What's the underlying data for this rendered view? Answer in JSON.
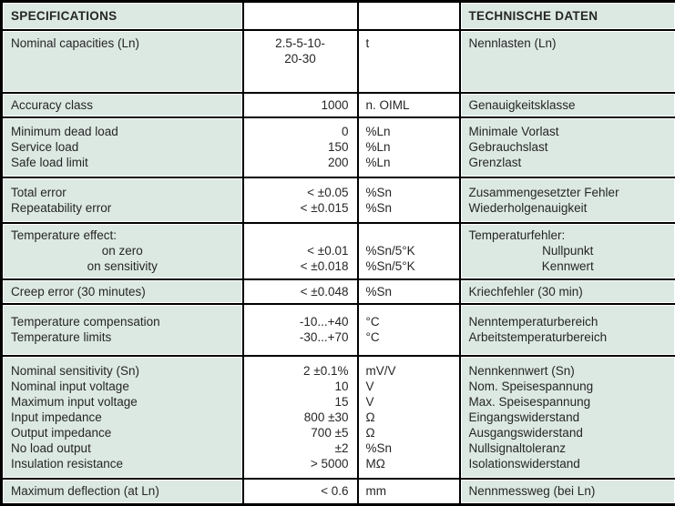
{
  "colors": {
    "cell_teal": "#dce9e3",
    "border_black": "#000000",
    "text_dark": "#262626",
    "cell_white": "#ffffff"
  },
  "header": {
    "left": "SPECIFICATIONS",
    "right": "TECHNISCHE DATEN"
  },
  "rows": [
    {
      "spec": [
        "Nominal capacities (Ln)"
      ],
      "value": [
        "2.5-5-10-",
        "20-30"
      ],
      "value_align": "center",
      "unit": [
        "t"
      ],
      "german": [
        "Nennlasten (Ln)"
      ],
      "valign": "top"
    },
    {
      "spec": [
        "Accuracy class"
      ],
      "value": [
        "1000"
      ],
      "unit": [
        "n. OIML"
      ],
      "german": [
        "Genauigkeitsklasse"
      ]
    },
    {
      "spec": [
        "Minimum dead load",
        "Service load",
        "Safe load limit"
      ],
      "value": [
        "0",
        "150",
        "200"
      ],
      "unit": [
        "%Ln",
        "%Ln",
        "%Ln"
      ],
      "german": [
        "Minimale Vorlast",
        "Gebrauchslast",
        "Grenzlast"
      ]
    },
    {
      "spec": [
        "Total error",
        "Repeatability error"
      ],
      "value": [
        "< ±0.05",
        "< ±0.015"
      ],
      "unit": [
        "%Sn",
        "%Sn"
      ],
      "german": [
        "Zusammengesetzter Fehler",
        "Wiederholgenauigkeit"
      ]
    },
    {
      "spec": [
        "Temperature effect:",
        "on zero",
        "on sensitivity"
      ],
      "spec_align": [
        "left",
        "center",
        "center"
      ],
      "value": [
        "",
        "< ±0.01",
        "< ±0.018"
      ],
      "unit": [
        "",
        "%Sn/5°K",
        "%Sn/5°K"
      ],
      "german": [
        "Temperaturfehler:",
        "Nullpunkt",
        "Kennwert"
      ],
      "german_align": [
        "left",
        "center",
        "center"
      ]
    },
    {
      "spec": [
        "Creep error (30 minutes)"
      ],
      "value": [
        "< ±0.048"
      ],
      "unit": [
        "%Sn"
      ],
      "german": [
        "Kriechfehler (30 min)"
      ]
    },
    {
      "spec": [
        "Temperature compensation",
        "Temperature limits"
      ],
      "value": [
        "-10...+40",
        "-30...+70"
      ],
      "unit": [
        "°C",
        "°C"
      ],
      "german": [
        "Nenntemperaturbereich",
        "Arbeitstemperaturbereich"
      ]
    },
    {
      "spec": [
        "Nominal sensitivity (Sn)",
        "Nominal input voltage",
        "Maximum input voltage",
        "Input impedance",
        "Output impedance",
        "No load output",
        "Insulation resistance"
      ],
      "value": [
        "2 ±0.1%",
        "10",
        "15",
        "800 ±30",
        "700 ±5",
        "±2",
        "> 5000"
      ],
      "unit": [
        "mV/V",
        "V",
        "V",
        "Ω",
        "Ω",
        "%Sn",
        "MΩ"
      ],
      "german": [
        "Nennkennwert (Sn)",
        "Nom. Speisespannung",
        "Max. Speisespannung",
        "Eingangswiderstand",
        "Ausgangswiderstand",
        "Nullsignaltoleranz",
        "Isolationswiderstand"
      ]
    },
    {
      "spec": [
        "Maximum deflection (at Ln)"
      ],
      "value": [
        "< 0.6"
      ],
      "unit": [
        "mm"
      ],
      "german": [
        "Nennmessweg (bei Ln)"
      ]
    }
  ]
}
